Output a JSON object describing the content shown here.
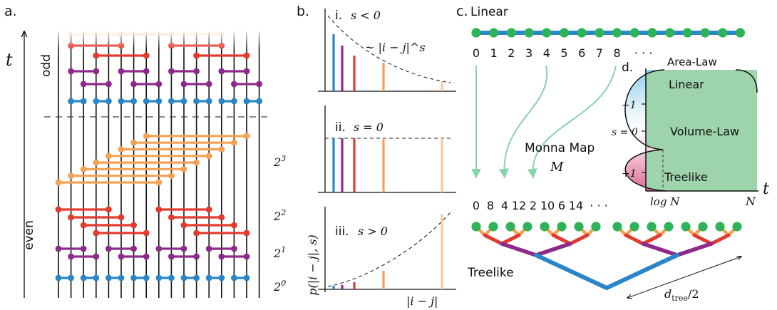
{
  "panel_a": {
    "label": "a.",
    "t_label": "t",
    "odd_label": "odd",
    "even_label": "even",
    "scale_labels": [
      "2^0",
      "2^1",
      "2^2",
      "2^3"
    ]
  },
  "panel_b": {
    "label": "b.",
    "sub_i": "i.",
    "sub_i_cond": "s < 0",
    "sub_i_law": "~ |i − j|^s",
    "sub_ii": "ii.",
    "sub_ii_cond": "s = 0",
    "sub_iii": "iii.",
    "sub_iii_cond": "s > 0",
    "ylabel": "p(|i − j|, s)",
    "xlabel": "|i − j|"
  },
  "panel_c": {
    "label": "c.",
    "linear_title": "Linear",
    "linear_indices": [
      "0",
      "1",
      "2",
      "3",
      "4",
      "5",
      "6",
      "7",
      "8",
      "· · ·"
    ],
    "tree_indices": [
      "0",
      "8",
      "4",
      "12",
      "2",
      "10",
      "6",
      "14",
      "· · ·"
    ],
    "map_title": "Monna Map",
    "map_symbol": "M",
    "tree_title": "Treelike",
    "depth_label": "d",
    "depth_sub": "tree",
    "depth_suffix": "/2"
  },
  "panel_d": {
    "label": "d.",
    "area_law": "Area-Law",
    "linear_phase": "Linear",
    "volume_law": "Volume-Law",
    "treelike_phase": "Treelike",
    "y_ticks": [
      "−1",
      "s = 0",
      "+1"
    ],
    "x_ticks": [
      "log N",
      "N"
    ],
    "x_axis_label": "t"
  },
  "colors": {
    "level0": "#2a86c8",
    "level1": "#8e2a8a",
    "level2": "#e23b2e",
    "level3": "#f2a255",
    "node": "#2fb35a",
    "arrow": "#86d3ad",
    "area_green": "#9ed4ac",
    "linear_blue": "#a6d6f0",
    "tree_pink": "#e3769c"
  }
}
